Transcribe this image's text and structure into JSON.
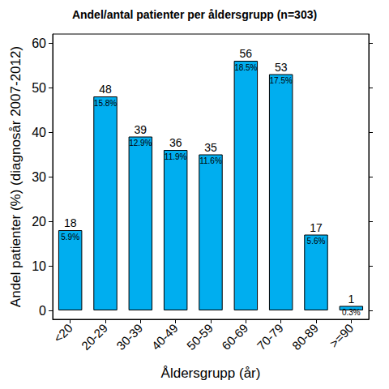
{
  "chart_data": {
    "type": "bar",
    "title": "Andel/antal patienter per åldersgrupp (n=303)",
    "x_label": "Åldersgrupp (år)",
    "y_label": "Andel patienter (%) (diagnosår 2007-2012)",
    "categories": [
      "<20",
      "20-29",
      "30-39",
      "40-49",
      "50-59",
      "60-69",
      "70-79",
      "80-89",
      ">=90"
    ],
    "values": [
      18,
      48,
      39,
      36,
      35,
      56,
      53,
      17,
      1
    ],
    "share_labels": [
      "5.9%",
      "15.8%",
      "12.9%",
      "11.9%",
      "11.6%",
      "18.5%",
      "17.5%",
      "5.6%",
      "0.3%"
    ],
    "color": "#00aeef",
    "ylim": [
      -2,
      62
    ],
    "yticks": [
      0,
      10,
      20,
      30,
      40,
      50,
      60
    ],
    "grid": false,
    "data_labels": true
  }
}
